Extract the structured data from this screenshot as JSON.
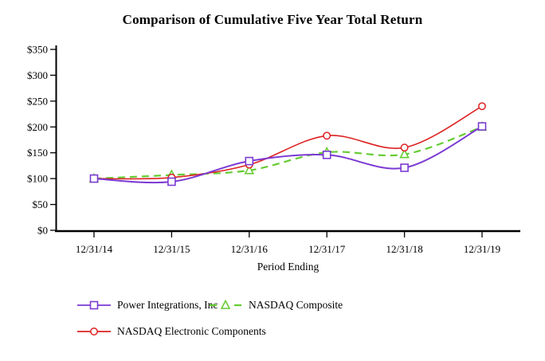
{
  "header": {
    "title": "Comparison of Cumulative Five Year Total Return"
  },
  "chart_data": {
    "type": "line",
    "title": "Comparison of Cumulative Five Year Total Return",
    "categories": [
      "12/31/14",
      "12/31/15",
      "12/31/16",
      "12/31/17",
      "12/31/18",
      "12/31/19"
    ],
    "series": [
      {
        "name": "Power Integrations, Inc",
        "marker": "square",
        "line_style": "solid",
        "color": "#7C3AD3",
        "values": [
          100,
          94,
          134,
          146,
          121,
          201
        ]
      },
      {
        "name": "NASDAQ Composite",
        "marker": "triangle",
        "line_style": "dashed",
        "color": "#66CC33",
        "values": [
          100,
          107,
          116,
          151,
          147,
          200
        ]
      },
      {
        "name": "NASDAQ Electronic Components",
        "marker": "circle",
        "line_style": "solid",
        "color": "#DD2222",
        "values": [
          100,
          102,
          127,
          183,
          160,
          240
        ]
      }
    ],
    "xlabel": "Period Ending",
    "ylabel": "",
    "ylim": [
      0,
      350
    ],
    "ytick_step": 50,
    "ytick_prefix": "$",
    "grid": false,
    "legend_position": "bottom",
    "axis_color": "#000000"
  }
}
